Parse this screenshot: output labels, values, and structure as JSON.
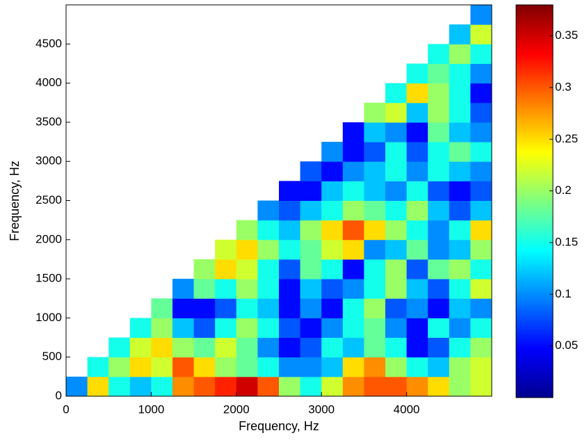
{
  "chart_data": {
    "type": "heatmap",
    "x_label": "Frequency, Hz",
    "y_label": "Frequency, Hz",
    "colormap": "jet",
    "x": [
      125,
      375,
      625,
      875,
      1125,
      1375,
      1625,
      1875,
      2125,
      2375,
      2625,
      2875,
      3125,
      3375,
      3625,
      3875,
      4125,
      4375,
      4625,
      4875
    ],
    "y": [
      125,
      375,
      625,
      875,
      1125,
      1375,
      1625,
      1875,
      2125,
      2375,
      2625,
      2875,
      3125,
      3375,
      3625,
      3875,
      4125,
      4375,
      4625,
      4875
    ],
    "values": [
      [
        0.1,
        0.25,
        0.15,
        0.12,
        0.15,
        0.28,
        0.3,
        0.32,
        0.35,
        0.3,
        0.2,
        0.15,
        0.22,
        0.28,
        0.3,
        0.3,
        0.28,
        0.25,
        0.2,
        0.22
      ],
      [
        null,
        0.15,
        0.2,
        0.25,
        0.22,
        0.3,
        0.25,
        0.2,
        0.18,
        0.15,
        0.1,
        0.1,
        0.12,
        0.25,
        0.28,
        0.2,
        0.15,
        0.12,
        0.2,
        0.22
      ],
      [
        null,
        null,
        0.15,
        0.22,
        0.25,
        0.2,
        0.18,
        0.22,
        0.18,
        0.1,
        0.05,
        0.08,
        0.15,
        0.12,
        0.18,
        0.15,
        0.05,
        0.08,
        0.15,
        0.2
      ],
      [
        null,
        null,
        null,
        0.15,
        0.2,
        0.12,
        0.08,
        0.15,
        0.2,
        0.15,
        0.08,
        0.05,
        0.1,
        0.15,
        0.18,
        0.1,
        0.05,
        0.15,
        0.1,
        0.15
      ],
      [
        null,
        null,
        null,
        null,
        0.18,
        0.05,
        0.05,
        0.08,
        0.15,
        0.12,
        0.05,
        0.1,
        0.05,
        0.15,
        0.2,
        0.08,
        0.1,
        0.05,
        0.12,
        0.1
      ],
      [
        null,
        null,
        null,
        null,
        null,
        0.1,
        0.18,
        0.15,
        0.2,
        0.15,
        0.05,
        0.12,
        0.08,
        0.1,
        0.15,
        0.2,
        0.12,
        0.08,
        0.15,
        0.22
      ],
      [
        null,
        null,
        null,
        null,
        null,
        null,
        0.2,
        0.25,
        0.22,
        0.15,
        0.08,
        0.18,
        0.15,
        0.05,
        0.15,
        0.2,
        0.08,
        0.18,
        0.2,
        0.15
      ],
      [
        null,
        null,
        null,
        null,
        null,
        null,
        null,
        0.22,
        0.25,
        0.2,
        0.15,
        0.18,
        0.22,
        0.25,
        0.1,
        0.12,
        0.18,
        0.1,
        0.12,
        0.2
      ],
      [
        null,
        null,
        null,
        null,
        null,
        null,
        null,
        null,
        0.2,
        0.15,
        0.12,
        0.2,
        0.25,
        0.3,
        0.25,
        0.2,
        0.15,
        0.1,
        0.15,
        0.25
      ],
      [
        null,
        null,
        null,
        null,
        null,
        null,
        null,
        null,
        null,
        0.1,
        0.08,
        0.12,
        0.15,
        0.2,
        0.18,
        0.15,
        0.2,
        0.12,
        0.08,
        0.12
      ],
      [
        null,
        null,
        null,
        null,
        null,
        null,
        null,
        null,
        null,
        null,
        0.05,
        0.05,
        0.12,
        0.15,
        0.12,
        0.1,
        0.15,
        0.08,
        0.05,
        0.08
      ],
      [
        null,
        null,
        null,
        null,
        null,
        null,
        null,
        null,
        null,
        null,
        null,
        0.08,
        0.05,
        0.1,
        0.12,
        0.15,
        0.1,
        0.15,
        0.12,
        0.1
      ],
      [
        null,
        null,
        null,
        null,
        null,
        null,
        null,
        null,
        null,
        null,
        null,
        null,
        0.1,
        0.05,
        0.08,
        0.15,
        0.08,
        0.15,
        0.18,
        0.15
      ],
      [
        null,
        null,
        null,
        null,
        null,
        null,
        null,
        null,
        null,
        null,
        null,
        null,
        null,
        0.05,
        0.12,
        0.1,
        0.05,
        0.18,
        0.12,
        0.1
      ],
      [
        null,
        null,
        null,
        null,
        null,
        null,
        null,
        null,
        null,
        null,
        null,
        null,
        null,
        null,
        0.2,
        0.22,
        0.12,
        0.2,
        0.15,
        0.08
      ],
      [
        null,
        null,
        null,
        null,
        null,
        null,
        null,
        null,
        null,
        null,
        null,
        null,
        null,
        null,
        null,
        0.15,
        0.25,
        0.2,
        0.15,
        0.05
      ],
      [
        null,
        null,
        null,
        null,
        null,
        null,
        null,
        null,
        null,
        null,
        null,
        null,
        null,
        null,
        null,
        null,
        0.15,
        0.18,
        0.15,
        0.1
      ],
      [
        null,
        null,
        null,
        null,
        null,
        null,
        null,
        null,
        null,
        null,
        null,
        null,
        null,
        null,
        null,
        null,
        null,
        0.15,
        0.2,
        0.15
      ],
      [
        null,
        null,
        null,
        null,
        null,
        null,
        null,
        null,
        null,
        null,
        null,
        null,
        null,
        null,
        null,
        null,
        null,
        null,
        0.12,
        0.22
      ],
      [
        null,
        null,
        null,
        null,
        null,
        null,
        null,
        null,
        null,
        null,
        null,
        null,
        null,
        null,
        null,
        null,
        null,
        null,
        null,
        0.1
      ]
    ],
    "xlim": [
      0,
      5000
    ],
    "ylim": [
      0,
      5000
    ],
    "xticks": [
      0,
      1000,
      2000,
      3000,
      4000
    ],
    "yticks": [
      0,
      500,
      1000,
      1500,
      2000,
      2500,
      3000,
      3500,
      4000,
      4500
    ],
    "zlim": [
      0,
      0.38
    ],
    "colorbar_ticks": [
      0.05,
      0.1,
      0.15,
      0.2,
      0.25,
      0.3,
      0.35
    ]
  }
}
